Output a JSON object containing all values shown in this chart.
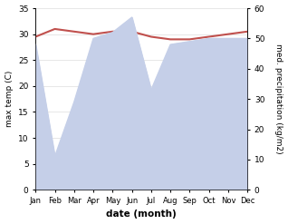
{
  "months": [
    "Jan",
    "Feb",
    "Mar",
    "Apr",
    "May",
    "Jun",
    "Jul",
    "Aug",
    "Sep",
    "Oct",
    "Nov",
    "Dec"
  ],
  "x": [
    0,
    1,
    2,
    3,
    4,
    5,
    6,
    7,
    8,
    9,
    10,
    11
  ],
  "temp": [
    29.5,
    31.0,
    30.5,
    30.0,
    30.5,
    30.5,
    29.5,
    29.0,
    29.0,
    29.5,
    30.0,
    30.5
  ],
  "precip": [
    48,
    11,
    29,
    50,
    52,
    57,
    33,
    48,
    49,
    50,
    50,
    50
  ],
  "temp_color": "#c0504d",
  "precip_fill_color": "#c5cfe8",
  "ylabel_left": "max temp (C)",
  "ylabel_right": "med. precipitation (kg/m2)",
  "xlabel": "date (month)",
  "ylim_left": [
    0,
    35
  ],
  "ylim_right": [
    0,
    60
  ],
  "yticks_left": [
    0,
    5,
    10,
    15,
    20,
    25,
    30,
    35
  ],
  "yticks_right": [
    0,
    10,
    20,
    30,
    40,
    50,
    60
  ]
}
